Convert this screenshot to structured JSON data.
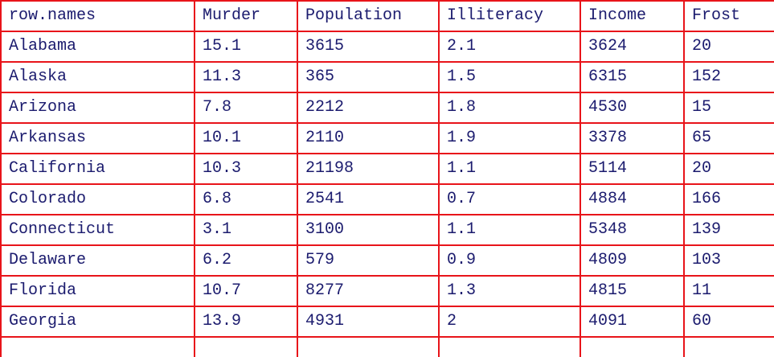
{
  "table": {
    "columns": [
      "row.names",
      "Murder",
      "Population",
      "Illiteracy",
      "Income",
      "Frost"
    ],
    "rows": [
      [
        "Alabama",
        "15.1",
        "3615",
        "2.1",
        "3624",
        "20"
      ],
      [
        "Alaska",
        "11.3",
        "365",
        "1.5",
        "6315",
        "152"
      ],
      [
        "Arizona",
        "7.8",
        "2212",
        "1.8",
        "4530",
        "15"
      ],
      [
        "Arkansas",
        "10.1",
        "2110",
        "1.9",
        "3378",
        "65"
      ],
      [
        "California",
        "10.3",
        "21198",
        "1.1",
        "5114",
        "20"
      ],
      [
        "Colorado",
        "6.8",
        "2541",
        "0.7",
        "4884",
        "166"
      ],
      [
        "Connecticut",
        "3.1",
        "3100",
        "1.1",
        "5348",
        "139"
      ],
      [
        "Delaware",
        "6.2",
        "579",
        "0.9",
        "4809",
        "103"
      ],
      [
        "Florida",
        "10.7",
        "8277",
        "1.3",
        "4815",
        "11"
      ],
      [
        "Georgia",
        "13.9",
        "4931",
        "2",
        "4091",
        "60"
      ],
      [
        "",
        "",
        "",
        "",
        "",
        ""
      ]
    ]
  },
  "colors": {
    "border": "#e8141a",
    "text": "#1b1b6e",
    "background": "#ffffff"
  }
}
